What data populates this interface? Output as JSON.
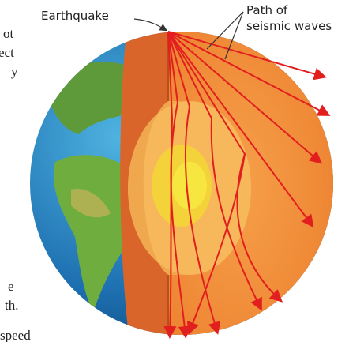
{
  "labels": {
    "earthquake": "Earthquake",
    "path_line1": "Path of",
    "path_line2": "seismic waves"
  },
  "text_fragments": [
    "ot",
    "ect",
    "y",
    "e",
    "th.",
    "speed"
  ]
}
